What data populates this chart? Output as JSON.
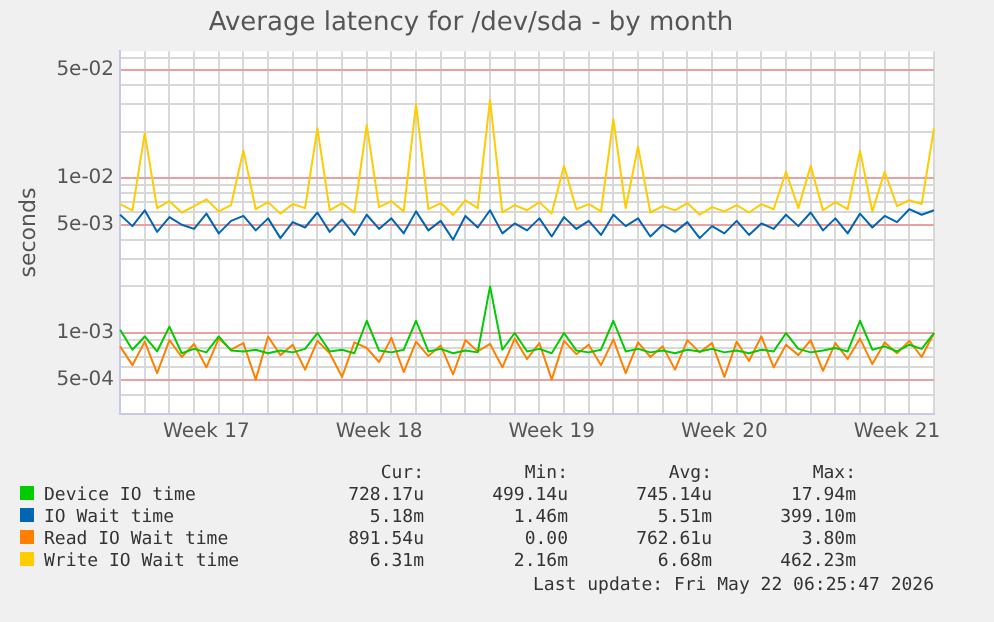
{
  "chart_data": {
    "type": "line",
    "title": "Average latency for /dev/sda - by month",
    "ylabel": "seconds",
    "log": "y",
    "grid": true,
    "legend": "bottom",
    "marker": "none",
    "line_style": "solid",
    "ylim": [
      0.00032,
      0.066
    ],
    "yticks": [
      {
        "value": 0.0004,
        "label": null
      },
      {
        "value": 0.0005,
        "label": "5e-04"
      },
      {
        "value": 0.0006,
        "label": null
      },
      {
        "value": 0.0007,
        "label": null
      },
      {
        "value": 0.0008,
        "label": null
      },
      {
        "value": 0.0009,
        "label": null
      },
      {
        "value": 0.001,
        "label": "1e-03"
      },
      {
        "value": 0.002,
        "label": null
      },
      {
        "value": 0.003,
        "label": null
      },
      {
        "value": 0.004,
        "label": null
      },
      {
        "value": 0.005,
        "label": "5e-03"
      },
      {
        "value": 0.006,
        "label": null
      },
      {
        "value": 0.007,
        "label": null
      },
      {
        "value": 0.008,
        "label": null
      },
      {
        "value": 0.009,
        "label": null
      },
      {
        "value": 0.01,
        "label": "1e-02"
      },
      {
        "value": 0.02,
        "label": null
      },
      {
        "value": 0.03,
        "label": null
      },
      {
        "value": 0.04,
        "label": null
      },
      {
        "value": 0.05,
        "label": "5e-02"
      },
      {
        "value": 0.06,
        "label": null
      }
    ],
    "categories": [
      null,
      null,
      null,
      null,
      null,
      null,
      null,
      "Week 17",
      null,
      null,
      null,
      null,
      null,
      null,
      null,
      null,
      null,
      null,
      null,
      null,
      null,
      "Week 18",
      null,
      null,
      null,
      null,
      null,
      null,
      null,
      null,
      null,
      null,
      null,
      null,
      null,
      "Week 19",
      null,
      null,
      null,
      null,
      null,
      null,
      null,
      null,
      null,
      null,
      null,
      null,
      null,
      "Week 20",
      null,
      null,
      null,
      null,
      null,
      null,
      null,
      null,
      null,
      null,
      null,
      null,
      null,
      "Week 21",
      null,
      null,
      null
    ],
    "series": [
      {
        "name": "Device IO time",
        "color": "#00cc00",
        "values": [
          0.00105,
          0.00078,
          0.00095,
          0.00076,
          0.0011,
          0.00074,
          0.00079,
          0.00075,
          0.00095,
          0.00077,
          0.00076,
          0.00078,
          0.00074,
          0.00077,
          0.00075,
          0.00079,
          0.001,
          0.00076,
          0.00078,
          0.00074,
          0.0012,
          0.00077,
          0.00075,
          0.00078,
          0.0012,
          0.00076,
          0.00079,
          0.00074,
          0.00077,
          0.00075,
          0.002,
          0.00078,
          0.001,
          0.00076,
          0.00079,
          0.00074,
          0.001,
          0.00077,
          0.00075,
          0.00078,
          0.0012,
          0.00076,
          0.00079,
          0.00075,
          0.00077,
          0.00074,
          0.00078,
          0.00076,
          0.00079,
          0.00075,
          0.00077,
          0.00074,
          0.00078,
          0.00076,
          0.001,
          0.00079,
          0.00075,
          0.00077,
          0.0008,
          0.00076,
          0.0012,
          0.00078,
          0.00082,
          0.00076,
          0.00084,
          0.00079,
          0.001
        ]
      },
      {
        "name": "IO Wait time",
        "color": "#0066b3",
        "values": [
          0.0058,
          0.0049,
          0.0062,
          0.0045,
          0.0056,
          0.005,
          0.0047,
          0.0059,
          0.0044,
          0.0053,
          0.0057,
          0.0046,
          0.0055,
          0.0041,
          0.0052,
          0.0048,
          0.006,
          0.0045,
          0.0054,
          0.0043,
          0.0058,
          0.0047,
          0.0055,
          0.0044,
          0.0061,
          0.0046,
          0.0053,
          0.004,
          0.0057,
          0.0048,
          0.0062,
          0.0044,
          0.0051,
          0.0046,
          0.0055,
          0.0042,
          0.0056,
          0.0047,
          0.0053,
          0.0043,
          0.0058,
          0.0049,
          0.0055,
          0.0042,
          0.005,
          0.0045,
          0.0052,
          0.0041,
          0.0049,
          0.0044,
          0.0053,
          0.0043,
          0.0051,
          0.0047,
          0.0058,
          0.0049,
          0.006,
          0.0046,
          0.0055,
          0.0044,
          0.0059,
          0.0048,
          0.0057,
          0.0052,
          0.0063,
          0.0058,
          0.0062
        ]
      },
      {
        "name": "Read IO Wait time",
        "color": "#ff8000",
        "values": [
          0.00082,
          0.00062,
          0.00088,
          0.00055,
          0.0009,
          0.0007,
          0.00085,
          0.0006,
          0.00092,
          0.00078,
          0.00086,
          0.0005,
          0.00095,
          0.00072,
          0.00084,
          0.00058,
          0.00089,
          0.00074,
          0.00052,
          0.00087,
          0.0008,
          0.00065,
          0.00093,
          0.00056,
          0.00088,
          0.00071,
          0.00083,
          0.00054,
          0.0009,
          0.00076,
          0.00085,
          0.0006,
          0.00092,
          0.00068,
          0.00086,
          0.0005,
          0.00089,
          0.00073,
          0.00084,
          0.00062,
          0.00091,
          0.00055,
          0.00087,
          0.0007,
          0.00082,
          0.00058,
          0.0009,
          0.00075,
          0.00086,
          0.00052,
          0.00088,
          0.00066,
          0.00095,
          0.0006,
          0.00084,
          0.00072,
          0.0009,
          0.00057,
          0.00086,
          0.00068,
          0.00092,
          0.00063,
          0.00087,
          0.00074,
          0.00089,
          0.0007,
          0.001
        ]
      },
      {
        "name": "Write IO Wait time",
        "color": "#ffcc00",
        "values": [
          0.0068,
          0.0062,
          0.0195,
          0.0064,
          0.0071,
          0.006,
          0.0066,
          0.0073,
          0.0061,
          0.0067,
          0.0151,
          0.0063,
          0.007,
          0.0059,
          0.0068,
          0.0064,
          0.021,
          0.0062,
          0.0069,
          0.006,
          0.022,
          0.0065,
          0.0071,
          0.0061,
          0.03,
          0.0063,
          0.0069,
          0.0058,
          0.0072,
          0.0064,
          0.032,
          0.006,
          0.0067,
          0.0062,
          0.007,
          0.0059,
          0.012,
          0.0063,
          0.0068,
          0.0061,
          0.024,
          0.0064,
          0.016,
          0.006,
          0.0066,
          0.0062,
          0.0069,
          0.0058,
          0.0065,
          0.0061,
          0.0067,
          0.006,
          0.0068,
          0.0063,
          0.011,
          0.0064,
          0.012,
          0.0062,
          0.007,
          0.0063,
          0.015,
          0.0061,
          0.011,
          0.0066,
          0.0072,
          0.0068,
          0.021
        ]
      }
    ],
    "annotations": [
      "Cur:",
      "Min:",
      "Avg:",
      "Max:",
      "728.17u",
      "499.14u",
      "745.14u",
      "17.94m",
      "5.18m",
      "1.46m",
      "5.51m",
      "399.10m",
      "891.54u",
      "0.00",
      "762.61u",
      "3.80m",
      "6.31m",
      "2.16m",
      "6.68m",
      "462.23m",
      "Last update: Fri May 22 06:25:47 2026"
    ]
  }
}
